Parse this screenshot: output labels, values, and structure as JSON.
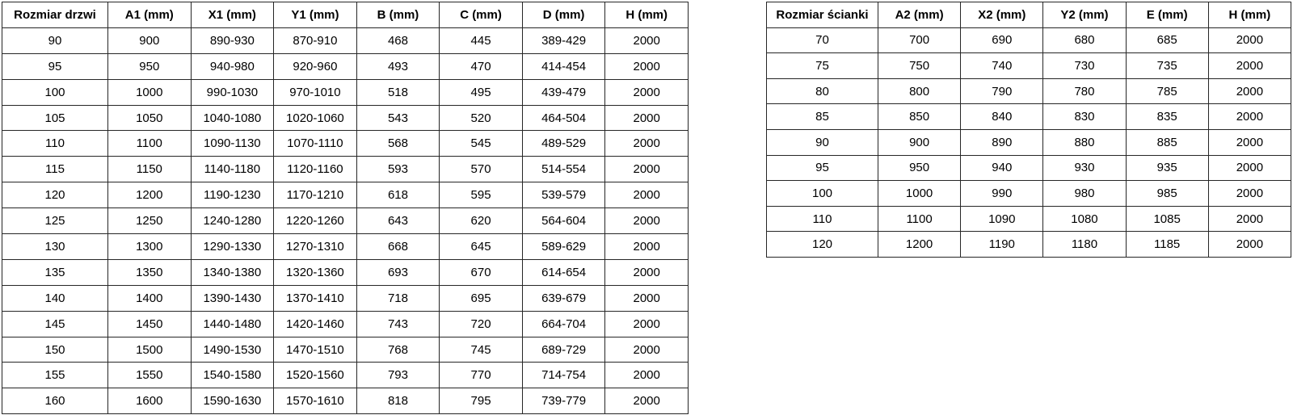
{
  "door_table": {
    "headers": [
      "Rozmiar drzwi",
      "A1 (mm)",
      "X1 (mm)",
      "Y1 (mm)",
      "B (mm)",
      "C (mm)",
      "D (mm)",
      "H (mm)"
    ],
    "rows": [
      [
        "90",
        "900",
        "890-930",
        "870-910",
        "468",
        "445",
        "389-429",
        "2000"
      ],
      [
        "95",
        "950",
        "940-980",
        "920-960",
        "493",
        "470",
        "414-454",
        "2000"
      ],
      [
        "100",
        "1000",
        "990-1030",
        "970-1010",
        "518",
        "495",
        "439-479",
        "2000"
      ],
      [
        "105",
        "1050",
        "1040-1080",
        "1020-1060",
        "543",
        "520",
        "464-504",
        "2000"
      ],
      [
        "110",
        "1100",
        "1090-1130",
        "1070-1110",
        "568",
        "545",
        "489-529",
        "2000"
      ],
      [
        "115",
        "1150",
        "1140-1180",
        "1120-1160",
        "593",
        "570",
        "514-554",
        "2000"
      ],
      [
        "120",
        "1200",
        "1190-1230",
        "1170-1210",
        "618",
        "595",
        "539-579",
        "2000"
      ],
      [
        "125",
        "1250",
        "1240-1280",
        "1220-1260",
        "643",
        "620",
        "564-604",
        "2000"
      ],
      [
        "130",
        "1300",
        "1290-1330",
        "1270-1310",
        "668",
        "645",
        "589-629",
        "2000"
      ],
      [
        "135",
        "1350",
        "1340-1380",
        "1320-1360",
        "693",
        "670",
        "614-654",
        "2000"
      ],
      [
        "140",
        "1400",
        "1390-1430",
        "1370-1410",
        "718",
        "695",
        "639-679",
        "2000"
      ],
      [
        "145",
        "1450",
        "1440-1480",
        "1420-1460",
        "743",
        "720",
        "664-704",
        "2000"
      ],
      [
        "150",
        "1500",
        "1490-1530",
        "1470-1510",
        "768",
        "745",
        "689-729",
        "2000"
      ],
      [
        "155",
        "1550",
        "1540-1580",
        "1520-1560",
        "793",
        "770",
        "714-754",
        "2000"
      ],
      [
        "160",
        "1600",
        "1590-1630",
        "1570-1610",
        "818",
        "795",
        "739-779",
        "2000"
      ]
    ]
  },
  "wall_table": {
    "headers": [
      "Rozmiar ścianki",
      "A2 (mm)",
      "X2 (mm)",
      "Y2 (mm)",
      "E (mm)",
      "H (mm)"
    ],
    "rows": [
      [
        "70",
        "700",
        "690",
        "680",
        "685",
        "2000"
      ],
      [
        "75",
        "750",
        "740",
        "730",
        "735",
        "2000"
      ],
      [
        "80",
        "800",
        "790",
        "780",
        "785",
        "2000"
      ],
      [
        "85",
        "850",
        "840",
        "830",
        "835",
        "2000"
      ],
      [
        "90",
        "900",
        "890",
        "880",
        "885",
        "2000"
      ],
      [
        "95",
        "950",
        "940",
        "930",
        "935",
        "2000"
      ],
      [
        "100",
        "1000",
        "990",
        "980",
        "985",
        "2000"
      ],
      [
        "110",
        "1100",
        "1090",
        "1080",
        "1085",
        "2000"
      ],
      [
        "120",
        "1200",
        "1190",
        "1180",
        "1185",
        "2000"
      ]
    ]
  },
  "colors": {
    "border": "#262626",
    "text": "#000000",
    "background": "#ffffff"
  }
}
